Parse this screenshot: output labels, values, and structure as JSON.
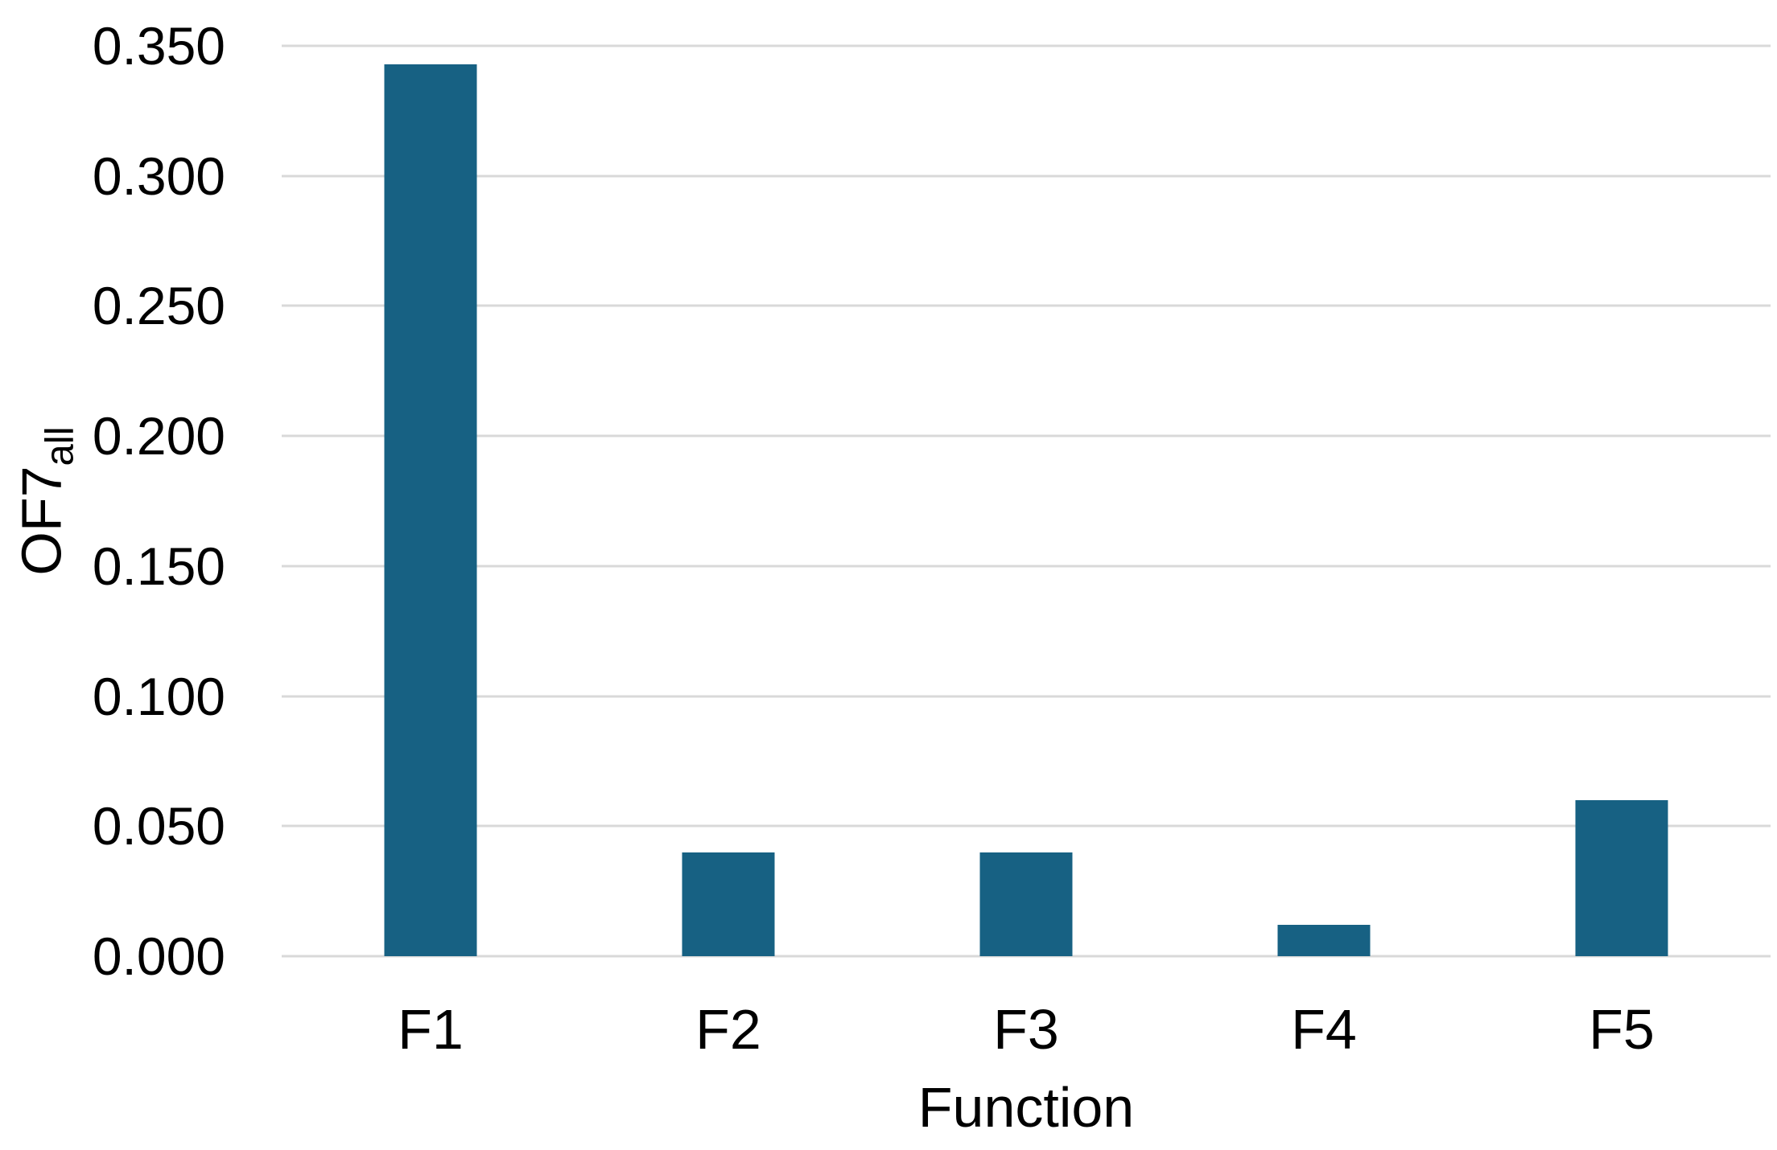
{
  "chart_data": {
    "type": "bar",
    "title": "",
    "xlabel": "Function",
    "ylabel": "OF7_all",
    "ylabel_main": "OF7",
    "ylabel_sub": "all",
    "categories": [
      "F1",
      "F2",
      "F3",
      "F4",
      "F5"
    ],
    "values": [
      0.343,
      0.04,
      0.04,
      0.012,
      0.06
    ],
    "ylim": [
      0,
      0.35
    ],
    "yticks": [
      {
        "value": 0.0,
        "label": "0.000"
      },
      {
        "value": 0.05,
        "label": "0.050"
      },
      {
        "value": 0.1,
        "label": "0.100"
      },
      {
        "value": 0.15,
        "label": "0.150"
      },
      {
        "value": 0.2,
        "label": "0.200"
      },
      {
        "value": 0.25,
        "label": "0.250"
      },
      {
        "value": 0.3,
        "label": "0.300"
      },
      {
        "value": 0.35,
        "label": "0.350"
      }
    ],
    "grid": "horizontal",
    "legend": "none",
    "bar_color": "#176183",
    "gridline_color": "#d9d9d9",
    "text_color": "#000000",
    "background_color": "#ffffff"
  }
}
